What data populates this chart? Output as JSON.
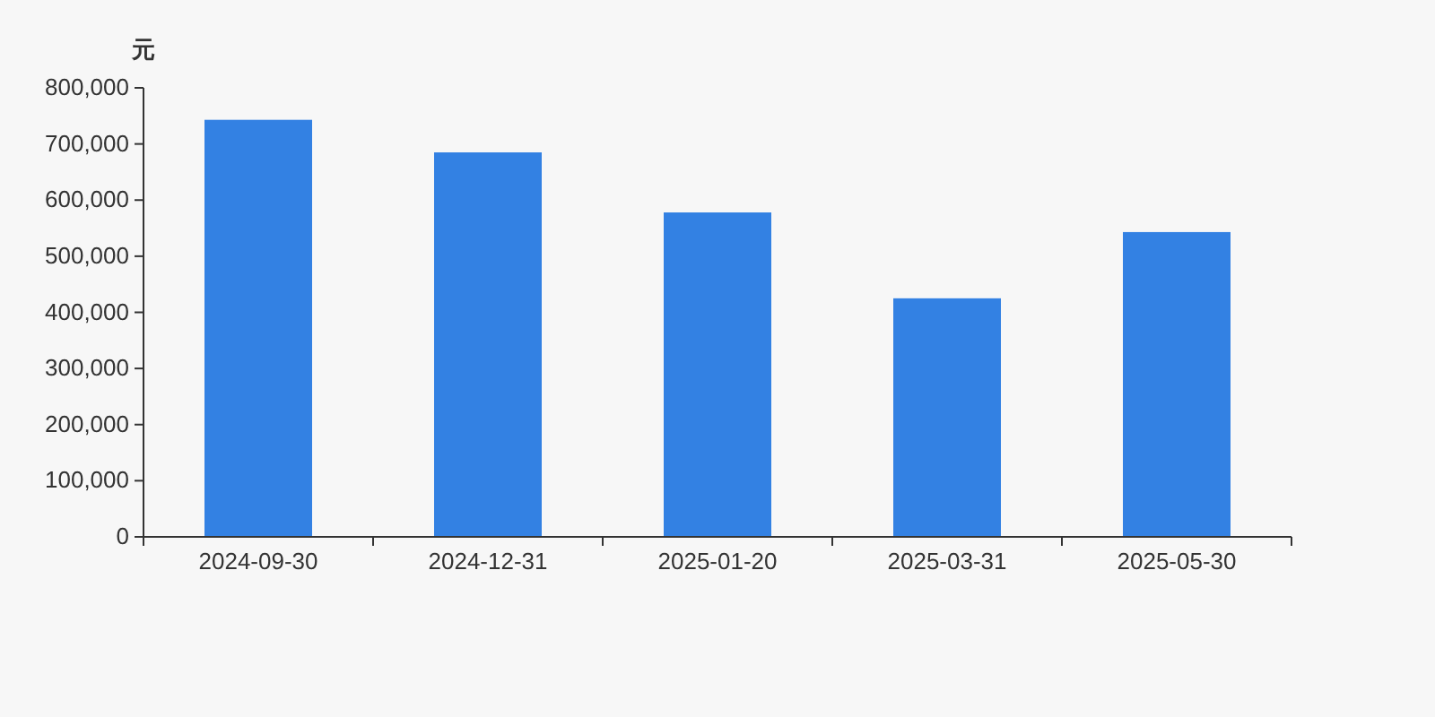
{
  "chart_data": {
    "type": "bar",
    "ylabel": "元",
    "categories": [
      "2024-09-30",
      "2024-12-31",
      "2025-01-20",
      "2025-03-31",
      "2025-05-30"
    ],
    "values": [
      743000,
      685000,
      578000,
      425000,
      543000
    ],
    "color": "#3381e3",
    "ylim": [
      0,
      800000
    ],
    "yticks": [
      0,
      {
        "value": 100000,
        "label": "100,000"
      },
      {
        "value": 200000,
        "label": "200,000"
      },
      {
        "value": 300000,
        "label": "300,000"
      },
      {
        "value": 400000,
        "label": "400,000"
      },
      {
        "value": 500000,
        "label": "500,000"
      },
      {
        "value": 600000,
        "label": "600,000"
      },
      {
        "value": 700000,
        "label": "700,000"
      },
      {
        "value": 800000,
        "label": "800,000"
      }
    ],
    "grid": false
  }
}
